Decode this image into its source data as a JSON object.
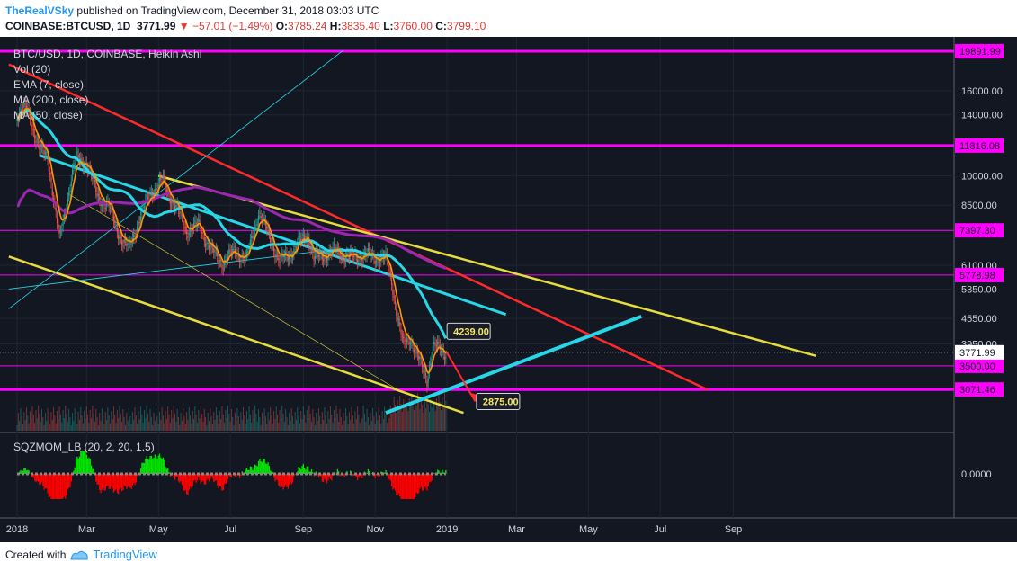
{
  "header": {
    "author": "TheRealVSky",
    "published_text": "published on TradingView.com, December 31, 2018 03:03 UTC",
    "symbol": "COINBASE:BTCUSD, 1D",
    "last": "3771.99",
    "change": "▼ −57.01 (−1.49%)",
    "o_label": "O:",
    "o": "3785.24",
    "h_label": "H:",
    "h": "3835.40",
    "l_label": "L:",
    "l": "3760.00",
    "c_label": "C:",
    "c": "3799.10"
  },
  "legend": {
    "title": "BTC/USD, 1D, COINBASE, Heikin Ashi",
    "items": [
      "Vol (20)",
      "EMA (7, close)",
      "MA (200, close)",
      "MA (50, close)"
    ]
  },
  "oscillator_label": "SQZMOM_LB (20, 2, 20, 1.5)",
  "footer": {
    "created_with": "Created with",
    "brand": "TradingView"
  },
  "colors": {
    "background": "#131722",
    "up": "#26a69a",
    "down": "#ef5350",
    "ema": "#ff9800",
    "ma200": "#9c27b0",
    "ma50": "#26d7e8",
    "level": "#ff00ff",
    "trend_yellow": "#e6dc3c",
    "trend_red": "#ff2a2a",
    "support_cyan": "#26d7e8"
  },
  "chart_data": {
    "type": "candlestick",
    "scale": "log",
    "price_ticks": [
      16000,
      14000,
      10000,
      8500,
      6100,
      5350,
      4550,
      3950
    ],
    "levels": [
      {
        "label": "19891.99",
        "value": 19891.99
      },
      {
        "label": "11816.08",
        "value": 11816.08
      },
      {
        "label": "7397.30",
        "value": 7397.3
      },
      {
        "label": "5778.98",
        "value": 5778.98
      },
      {
        "label": "3500.00",
        "value": 3500.0
      },
      {
        "label": "3071.46",
        "value": 3071.46
      }
    ],
    "last_price": {
      "label": "3771.99",
      "value": 3771.99
    },
    "callouts": [
      {
        "label": "4239.00",
        "value": 4239.0
      },
      {
        "label": "2875.00",
        "value": 2875.0
      }
    ],
    "oscillator_ticks": [
      "0.0000"
    ],
    "x_labels": [
      "2018",
      "Mar",
      "May",
      "Jul",
      "Sep",
      "Nov",
      "2019",
      "Mar",
      "May",
      "Jul",
      "Sep"
    ],
    "price_path": [
      [
        "2018-01-01",
        14000
      ],
      [
        "2018-01-10",
        14500
      ],
      [
        "2018-01-20",
        11500
      ],
      [
        "2018-01-27",
        11200
      ],
      [
        "2018-02-06",
        7000
      ],
      [
        "2018-02-15",
        9500
      ],
      [
        "2018-02-20",
        11000
      ],
      [
        "2018-03-01",
        10800
      ],
      [
        "2018-03-10",
        9000
      ],
      [
        "2018-03-20",
        8400
      ],
      [
        "2018-04-01",
        6900
      ],
      [
        "2018-04-06",
        6700
      ],
      [
        "2018-04-15",
        7900
      ],
      [
        "2018-04-25",
        9200
      ],
      [
        "2018-05-05",
        9700
      ],
      [
        "2018-05-15",
        8500
      ],
      [
        "2018-05-25",
        7400
      ],
      [
        "2018-06-05",
        7600
      ],
      [
        "2018-06-15",
        6600
      ],
      [
        "2018-06-25",
        6200
      ],
      [
        "2018-07-05",
        6600
      ],
      [
        "2018-07-15",
        6300
      ],
      [
        "2018-07-25",
        8200
      ],
      [
        "2018-08-05",
        7000
      ],
      [
        "2018-08-12",
        6200
      ],
      [
        "2018-08-25",
        6700
      ],
      [
        "2018-09-05",
        7300
      ],
      [
        "2018-09-10",
        6300
      ],
      [
        "2018-09-20",
        6500
      ],
      [
        "2018-10-01",
        6600
      ],
      [
        "2018-10-10",
        6350
      ],
      [
        "2018-10-20",
        6450
      ],
      [
        "2018-11-01",
        6400
      ],
      [
        "2018-11-10",
        6300
      ],
      [
        "2018-11-15",
        5600
      ],
      [
        "2018-11-20",
        4600
      ],
      [
        "2018-11-25",
        3900
      ],
      [
        "2018-12-01",
        4100
      ],
      [
        "2018-12-10",
        3500
      ],
      [
        "2018-12-15",
        3250
      ],
      [
        "2018-12-20",
        3900
      ],
      [
        "2018-12-25",
        3850
      ],
      [
        "2018-12-31",
        3771.99
      ]
    ]
  }
}
